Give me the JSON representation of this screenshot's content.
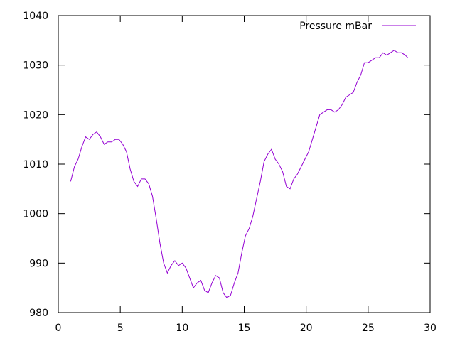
{
  "chart_data": {
    "type": "line",
    "title": "",
    "xlabel": "",
    "ylabel": "",
    "xlim": [
      0,
      30
    ],
    "ylim": [
      980,
      1040
    ],
    "x_ticks": [
      0,
      5,
      10,
      15,
      20,
      25,
      30
    ],
    "y_ticks": [
      980,
      990,
      1000,
      1010,
      1020,
      1030,
      1040
    ],
    "x_tick_labels": [
      "0",
      "5",
      "10",
      "15",
      "20",
      "25",
      "30"
    ],
    "y_tick_labels": [
      "980",
      "990",
      "1000",
      "1010",
      "1020",
      "1030",
      "1040"
    ],
    "grid": false,
    "legend_position": "top-right",
    "series": [
      {
        "name": "Pressure mBar",
        "color": "#9400d3",
        "x": [
          1.0,
          1.3,
          1.6,
          1.9,
          2.2,
          2.5,
          2.8,
          3.1,
          3.4,
          3.7,
          4.0,
          4.3,
          4.6,
          4.9,
          5.2,
          5.5,
          5.8,
          6.1,
          6.4,
          6.7,
          7.0,
          7.3,
          7.6,
          7.9,
          8.2,
          8.5,
          8.8,
          9.1,
          9.4,
          9.7,
          10.0,
          10.3,
          10.6,
          10.9,
          11.2,
          11.5,
          11.8,
          12.1,
          12.4,
          12.7,
          13.0,
          13.3,
          13.6,
          13.9,
          14.2,
          14.5,
          14.8,
          15.1,
          15.4,
          15.7,
          16.0,
          16.3,
          16.6,
          16.9,
          17.2,
          17.5,
          17.8,
          18.1,
          18.4,
          18.7,
          19.0,
          19.3,
          19.6,
          19.9,
          20.2,
          20.5,
          20.8,
          21.1,
          21.4,
          21.7,
          22.0,
          22.3,
          22.6,
          22.9,
          23.2,
          23.5,
          23.8,
          24.1,
          24.4,
          24.7,
          25.0,
          25.3,
          25.6,
          25.9,
          26.2,
          26.5,
          26.8,
          27.1,
          27.4,
          27.7,
          28.0,
          28.2
        ],
        "values": [
          1006.5,
          1009.5,
          1011.0,
          1013.5,
          1015.5,
          1015.0,
          1016.0,
          1016.5,
          1015.5,
          1014.0,
          1014.5,
          1014.5,
          1015.0,
          1015.0,
          1014.0,
          1012.5,
          1009.0,
          1006.5,
          1005.5,
          1007.0,
          1007.0,
          1006.0,
          1003.5,
          999.0,
          994.0,
          990.0,
          988.0,
          989.5,
          990.5,
          989.5,
          990.0,
          989.0,
          987.0,
          985.0,
          986.0,
          986.5,
          984.5,
          984.0,
          986.0,
          987.5,
          987.0,
          984.0,
          983.0,
          983.5,
          986.0,
          988.0,
          992.0,
          995.5,
          997.0,
          999.5,
          1003.0,
          1006.5,
          1010.5,
          1012.0,
          1013.0,
          1011.0,
          1010.0,
          1008.5,
          1005.5,
          1005.0,
          1007.0,
          1008.0,
          1009.5,
          1011.0,
          1012.5,
          1015.0,
          1017.5,
          1020.0,
          1020.5,
          1021.0,
          1021.0,
          1020.5,
          1021.0,
          1022.0,
          1023.5,
          1024.0,
          1024.5,
          1026.5,
          1028.0,
          1030.5,
          1030.5,
          1031.0,
          1031.5,
          1031.5,
          1032.5,
          1032.0,
          1032.5,
          1033.0,
          1032.5,
          1032.5,
          1032.0,
          1031.5
        ]
      }
    ]
  }
}
